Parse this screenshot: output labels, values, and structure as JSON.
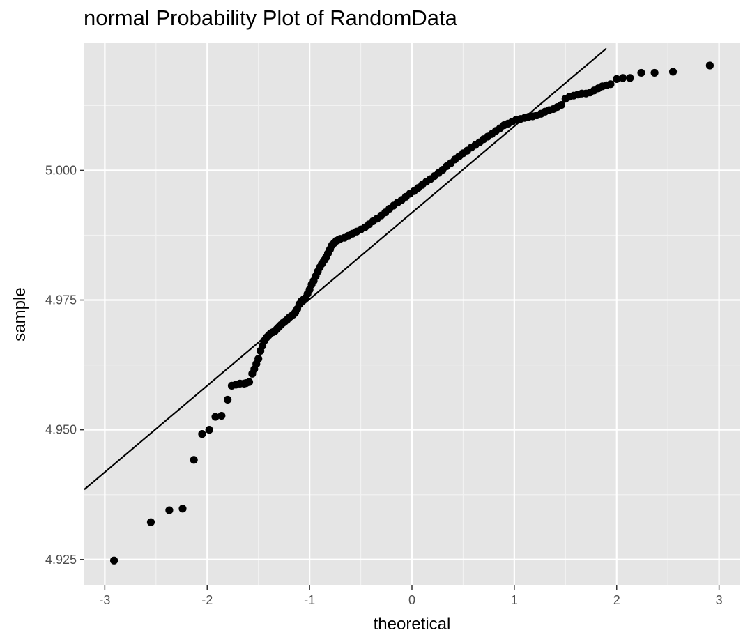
{
  "chart_data": {
    "type": "scatter",
    "title": "normal Probability Plot of RandomData",
    "xlabel": "theoretical",
    "ylabel": "sample",
    "xlim": [
      -3.2,
      3.2
    ],
    "ylim": [
      4.92,
      5.0245
    ],
    "x_ticks": [
      -3,
      -2,
      -1,
      0,
      1,
      2,
      3
    ],
    "x_tick_labels": [
      "-3",
      "-2",
      "-1",
      "0",
      "1",
      "2",
      "3"
    ],
    "y_ticks": [
      4.925,
      4.95,
      4.975,
      5.0
    ],
    "y_tick_labels": [
      "4.925",
      "4.950",
      "4.975",
      "5.000"
    ],
    "grid": true,
    "background": "#e5e5e5",
    "point_color": "#000000",
    "reference_line": {
      "x1": -3.2,
      "y1": 4.9385,
      "x2": 1.9,
      "y2": 5.0235
    },
    "points": {
      "x": [
        -2.91,
        -2.55,
        -2.37,
        -2.24,
        -2.13,
        -2.05,
        -1.98,
        -1.92,
        -1.86,
        -1.8,
        -1.76,
        -1.72,
        -1.68,
        -1.64,
        -1.62,
        -1.59,
        -1.56,
        -1.54,
        -1.52,
        -1.5,
        -1.48,
        -1.46,
        -1.44,
        -1.42,
        -1.4,
        -1.38,
        -1.36,
        -1.34,
        -1.32,
        -1.3,
        -1.28,
        -1.26,
        -1.24,
        -1.22,
        -1.2,
        -1.18,
        -1.16,
        -1.14,
        -1.12,
        -1.1,
        -1.08,
        -1.06,
        -1.04,
        -1.02,
        -1.0,
        -0.98,
        -0.96,
        -0.94,
        -0.92,
        -0.9,
        -0.88,
        -0.86,
        -0.84,
        -0.82,
        -0.8,
        -0.78,
        -0.76,
        -0.74,
        -0.72,
        -0.7,
        -0.66,
        -0.62,
        -0.58,
        -0.54,
        -0.5,
        -0.46,
        -0.42,
        -0.38,
        -0.34,
        -0.3,
        -0.26,
        -0.22,
        -0.18,
        -0.14,
        -0.1,
        -0.06,
        -0.02,
        0.02,
        0.06,
        0.1,
        0.14,
        0.18,
        0.22,
        0.26,
        0.3,
        0.34,
        0.38,
        0.42,
        0.46,
        0.5,
        0.54,
        0.58,
        0.62,
        0.66,
        0.7,
        0.74,
        0.78,
        0.82,
        0.86,
        0.9,
        0.94,
        0.98,
        1.02,
        1.06,
        1.1,
        1.14,
        1.18,
        1.22,
        1.26,
        1.3,
        1.34,
        1.38,
        1.42,
        1.46,
        1.5,
        1.54,
        1.58,
        1.62,
        1.66,
        1.7,
        1.74,
        1.78,
        1.82,
        1.86,
        1.9,
        1.94,
        2.0,
        2.06,
        2.13,
        2.24,
        2.37,
        2.55,
        2.91
      ],
      "y": [
        4.9248,
        4.9322,
        4.9345,
        4.9348,
        4.9442,
        4.9492,
        4.95,
        4.9525,
        4.9527,
        4.9558,
        4.9585,
        4.9587,
        4.9589,
        4.9589,
        4.959,
        4.9592,
        4.9608,
        4.9617,
        4.9627,
        4.9637,
        4.9652,
        4.9662,
        4.9672,
        4.9678,
        4.9682,
        4.9686,
        4.9688,
        4.969,
        4.9694,
        4.9698,
        4.9702,
        4.9706,
        4.9709,
        4.9712,
        4.9716,
        4.9719,
        4.9722,
        4.9726,
        4.9733,
        4.9742,
        4.9748,
        4.9751,
        4.9754,
        4.9762,
        4.977,
        4.978,
        4.9787,
        4.9796,
        4.9805,
        4.9813,
        4.982,
        4.9826,
        4.9832,
        4.984,
        4.9848,
        4.9856,
        4.986,
        4.9864,
        4.9866,
        4.9868,
        4.987,
        4.9874,
        4.9878,
        4.9882,
        4.9886,
        4.989,
        4.9896,
        4.9902,
        4.9907,
        4.9913,
        4.9919,
        4.9926,
        4.9932,
        4.9938,
        4.9943,
        4.9949,
        4.9955,
        4.996,
        4.9966,
        4.9972,
        4.9978,
        4.9983,
        4.9989,
        4.9995,
        5.0001,
        5.0008,
        5.0014,
        5.0021,
        5.0027,
        5.0033,
        5.0038,
        5.0044,
        5.0049,
        5.0054,
        5.006,
        5.0065,
        5.007,
        5.0076,
        5.0081,
        5.0087,
        5.009,
        5.0094,
        5.0098,
        5.0099,
        5.0101,
        5.0103,
        5.0104,
        5.0106,
        5.0109,
        5.0113,
        5.0116,
        5.0118,
        5.0122,
        5.0126,
        5.0138,
        5.0142,
        5.0144,
        5.0146,
        5.0148,
        5.0148,
        5.015,
        5.0154,
        5.0158,
        5.0162,
        5.0164,
        5.0166,
        5.0176,
        5.0178,
        5.0178,
        5.0188,
        5.0188,
        5.019,
        5.0202
      ]
    }
  }
}
